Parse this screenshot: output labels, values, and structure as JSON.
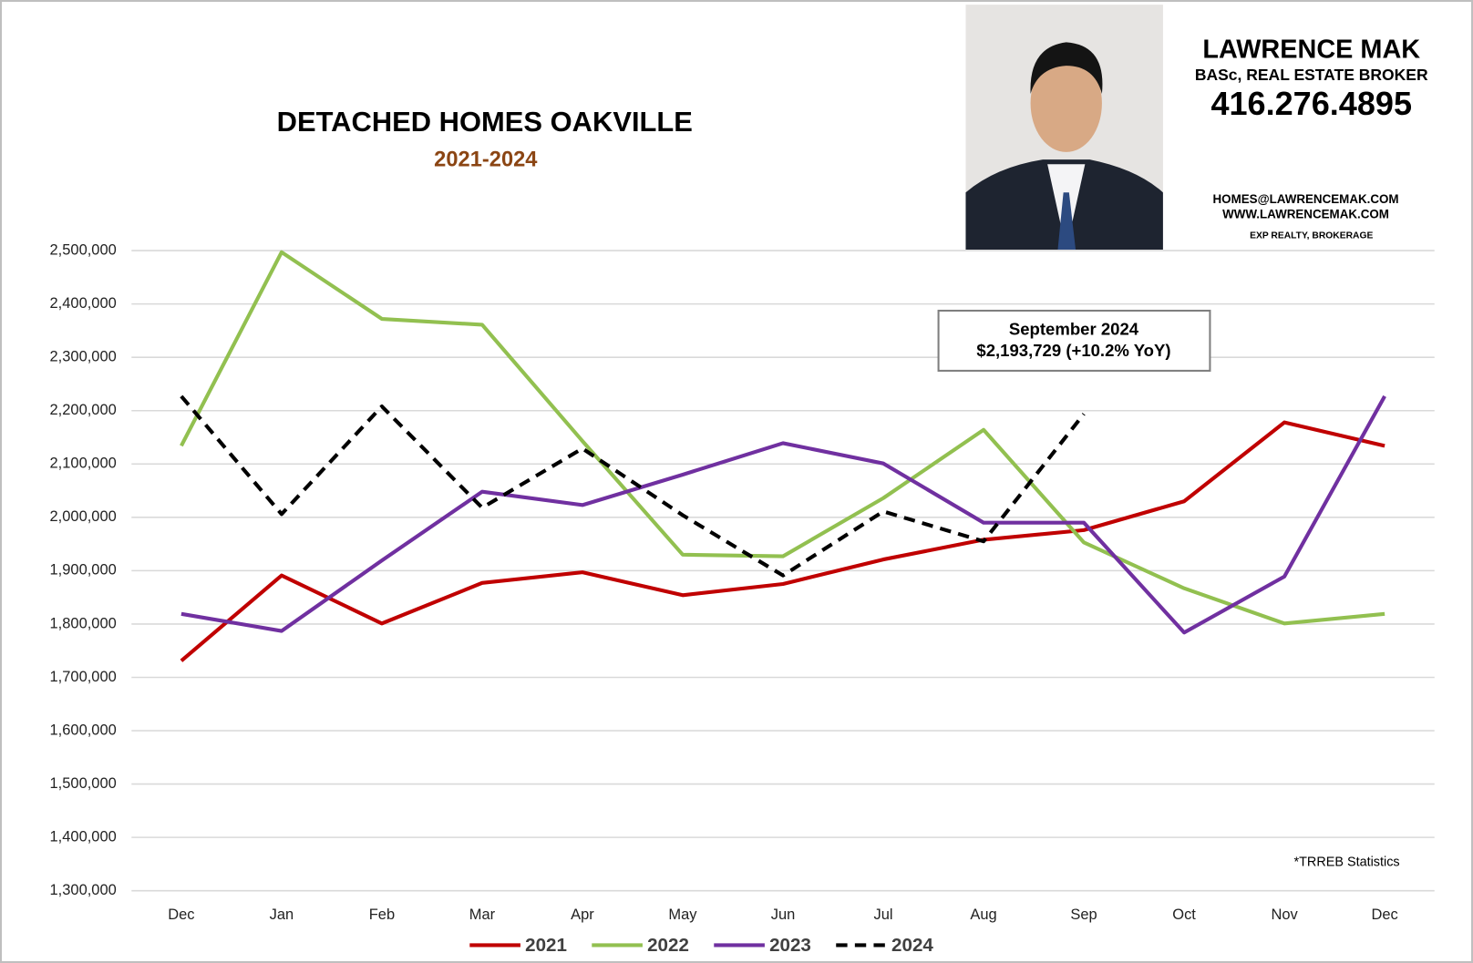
{
  "chart_data": {
    "type": "line",
    "title": "DETACHED HOMES OAKVILLE",
    "subtitle": "2021-2024",
    "categories": [
      "Dec",
      "Jan",
      "Feb",
      "Mar",
      "Apr",
      "May",
      "Jun",
      "Jul",
      "Aug",
      "Sep",
      "Oct",
      "Nov",
      "Dec"
    ],
    "series": [
      {
        "name": "2021",
        "color": "#c00000",
        "dashed": false,
        "values": [
          1731000,
          1891000,
          1801000,
          1877000,
          1897000,
          1854000,
          1875000,
          1921000,
          1958000,
          1976000,
          2030000,
          2178000,
          2134000
        ]
      },
      {
        "name": "2022",
        "color": "#92c050",
        "dashed": false,
        "values": [
          2134000,
          2497000,
          2372000,
          2361000,
          2143000,
          1930000,
          1927000,
          2036000,
          2164000,
          1953000,
          1867000,
          1801000,
          1819000
        ]
      },
      {
        "name": "2023",
        "color": "#7030a0",
        "dashed": false,
        "values": [
          1819000,
          1787000,
          1919000,
          2048000,
          2023000,
          2080000,
          2139000,
          2101000,
          1990000,
          1990000,
          1784000,
          1889000,
          2227000
        ]
      },
      {
        "name": "2024",
        "color": "#000000",
        "dashed": true,
        "values": [
          2227000,
          2006000,
          2208000,
          2018000,
          2129000,
          2004000,
          1891000,
          2011000,
          1955000,
          2193729,
          null,
          null,
          null
        ]
      }
    ],
    "ylim": [
      1300000,
      2500000
    ],
    "yticks": [
      {
        "value": 1300000,
        "label": "1,300,000"
      },
      {
        "value": 1400000,
        "label": "1,400,000"
      },
      {
        "value": 1500000,
        "label": "1,500,000"
      },
      {
        "value": 1600000,
        "label": "1,600,000"
      },
      {
        "value": 1700000,
        "label": "1,700,000"
      },
      {
        "value": 1800000,
        "label": "1,800,000"
      },
      {
        "value": 1900000,
        "label": "1,900,000"
      },
      {
        "value": 2000000,
        "label": "2,000,000"
      },
      {
        "value": 2100000,
        "label": "2,100,000"
      },
      {
        "value": 2200000,
        "label": "2,200,000"
      },
      {
        "value": 2300000,
        "label": "2,300,000"
      },
      {
        "value": 2400000,
        "label": "2,400,000"
      },
      {
        "value": 2500000,
        "label": "2,500,000"
      }
    ],
    "grid": true,
    "legend": "bottom",
    "annotation": [
      "September 2024",
      "$2,193,729 (+10.2% YoY)"
    ],
    "footnote": "*TRREB Statistics",
    "agent": {
      "name": "LAWRENCE MAK",
      "credentials": "BASc, REAL ESTATE BROKER",
      "phone": "416.276.4895",
      "email": "HOMES@LAWRENCEMAK.COM",
      "website": "WWW.LAWRENCEMAK.COM",
      "brokerage": "EXP REALTY, BROKERAGE"
    }
  }
}
